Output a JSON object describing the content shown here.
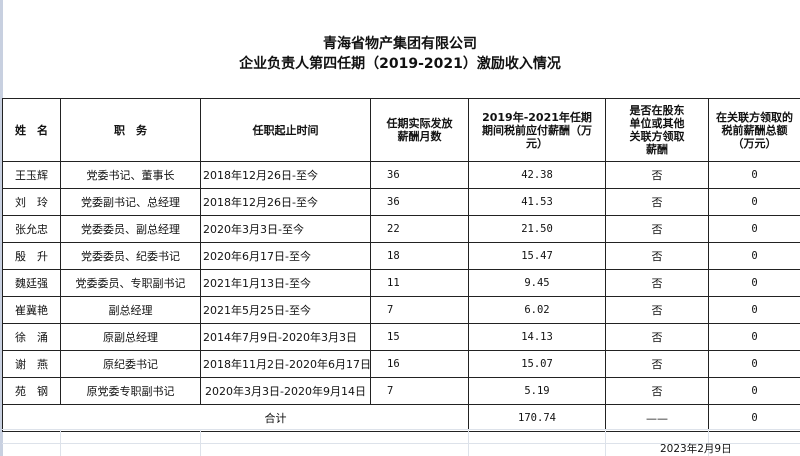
{
  "title": {
    "line1": "青海省物产集团有限公司",
    "line2": "企业负责人第四任期（2019-2021）激励收入情况"
  },
  "table": {
    "headers": [
      "姓　名",
      "职　务",
      "任职起止时间",
      "任期实际发放薪酬月数",
      "2019年-2021年任期期间税前应付薪酬（万元）",
      "是否在股东单位或其他关联方领取薪酬",
      "在关联方领取的税前薪酬总额（万元）"
    ],
    "rows": [
      {
        "name": "王玉辉",
        "position": "党委书记、董事长",
        "term": "2018年12月26日-至今",
        "months": "36",
        "pay": "42.38",
        "related": "否",
        "related_amount": "0"
      },
      {
        "name": "刘　玲",
        "position": "党委副书记、总经理",
        "term": "2018年12月26日-至今",
        "months": "36",
        "pay": "41.53",
        "related": "否",
        "related_amount": "0"
      },
      {
        "name": "张允忠",
        "position": "党委委员、副总经理",
        "term": "2020年3月3日-至今",
        "months": "22",
        "pay": "21.50",
        "related": "否",
        "related_amount": "0"
      },
      {
        "name": "殷　升",
        "position": "党委委员、纪委书记",
        "term": "2020年6月17日-至今",
        "months": "18",
        "pay": "15.47",
        "related": "否",
        "related_amount": "0"
      },
      {
        "name": "魏廷强",
        "position": "党委委员、专职副书记",
        "term": "2021年1月13日-至今",
        "months": "11",
        "pay": "9.45",
        "related": "否",
        "related_amount": "0"
      },
      {
        "name": "崔冀艳",
        "position": "副总经理",
        "term": "2021年5月25日-至今",
        "months": "7",
        "pay": "6.02",
        "related": "否",
        "related_amount": "0"
      },
      {
        "name": "徐　涌",
        "position": "原副总经理",
        "term": "2014年7月9日-2020年3月3日",
        "months": "15",
        "pay": "14.13",
        "related": "否",
        "related_amount": "0"
      },
      {
        "name": "谢　燕",
        "position": "原纪委书记",
        "term": "2018年11月2日-2020年6月17日",
        "months": "16",
        "pay": "15.07",
        "related": "否",
        "related_amount": "0"
      },
      {
        "name": "苑　钢",
        "position": "原党委专职副书记",
        "term": "2020年3月3日-2020年9月14日",
        "months": "7",
        "pay": "5.19",
        "related": "否",
        "related_amount": "0"
      }
    ],
    "total": {
      "label": "合计",
      "pay": "170.74",
      "related": "——",
      "related_amount": "0"
    }
  },
  "footer_date": "2023年2月9日"
}
